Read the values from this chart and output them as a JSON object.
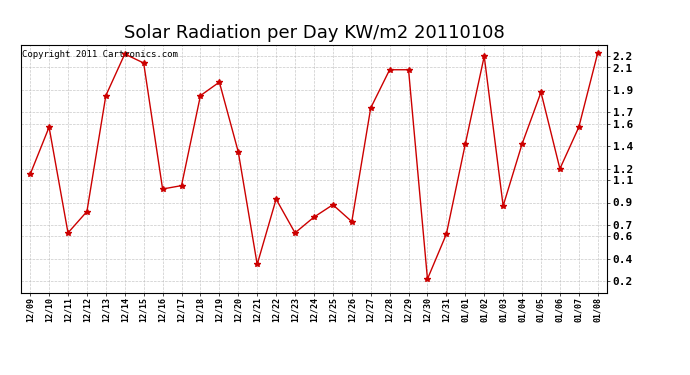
{
  "title": "Solar Radiation per Day KW/m2 20110108",
  "copyright": "Copyright 2011 Cartronics.com",
  "labels": [
    "12/09",
    "12/10",
    "12/11",
    "12/12",
    "12/13",
    "12/14",
    "12/15",
    "12/16",
    "12/17",
    "12/18",
    "12/19",
    "12/20",
    "12/21",
    "12/22",
    "12/23",
    "12/24",
    "12/25",
    "12/26",
    "12/27",
    "12/28",
    "12/29",
    "12/30",
    "12/31",
    "01/01",
    "01/02",
    "01/03",
    "01/04",
    "01/05",
    "01/06",
    "01/07",
    "01/08"
  ],
  "values": [
    1.15,
    1.57,
    0.63,
    0.82,
    1.85,
    2.22,
    2.14,
    1.02,
    1.05,
    1.85,
    1.97,
    1.35,
    0.35,
    0.93,
    0.63,
    0.77,
    0.88,
    0.73,
    1.74,
    2.08,
    2.08,
    0.22,
    0.62,
    1.42,
    2.2,
    0.87,
    1.42,
    1.88,
    1.2,
    1.57,
    2.23
  ],
  "line_color": "#cc0000",
  "marker": "*",
  "marker_size": 4,
  "bg_color": "#ffffff",
  "grid_color": "#bbbbbb",
  "ylim_min": 0.1,
  "ylim_max": 2.3,
  "ytick_positions": [
    0.2,
    0.4,
    0.6,
    0.7,
    0.9,
    1.1,
    1.2,
    1.4,
    1.6,
    1.7,
    1.9,
    2.1,
    2.2
  ],
  "ytick_labels": [
    "0.2",
    "0.4",
    "0.6",
    "0.7",
    "0.9",
    "1.1",
    "1.2",
    "1.4",
    "1.6",
    "1.7",
    "1.9",
    "2.1",
    "2.2"
  ],
  "title_fontsize": 13,
  "copyright_fontsize": 6.5,
  "tick_fontsize": 8,
  "xtick_fontsize": 6
}
